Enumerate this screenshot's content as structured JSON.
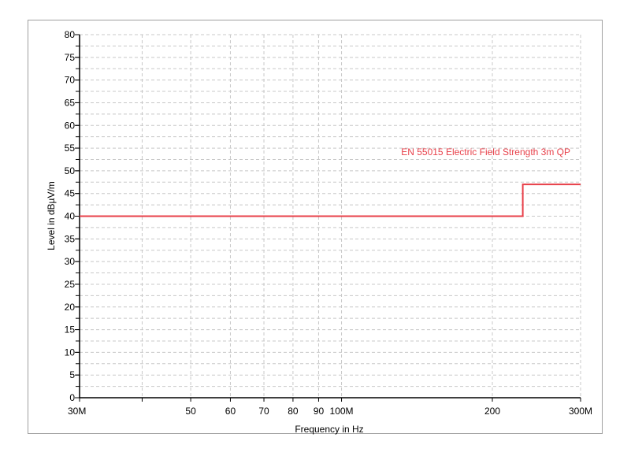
{
  "chart_data": {
    "type": "line",
    "title": "",
    "xlabel": "Frequency in Hz",
    "ylabel": "Level in dBµV/m",
    "x_scale": "log",
    "xlim": [
      30,
      300
    ],
    "ylim": [
      0,
      80
    ],
    "grid": true,
    "x_ticks": [
      {
        "value": 30,
        "label": "30M"
      },
      {
        "value": 40,
        "label": ""
      },
      {
        "value": 50,
        "label": "50"
      },
      {
        "value": 60,
        "label": "60"
      },
      {
        "value": 70,
        "label": "70"
      },
      {
        "value": 80,
        "label": "80"
      },
      {
        "value": 90,
        "label": "90"
      },
      {
        "value": 100,
        "label": "100M"
      },
      {
        "value": 200,
        "label": "200"
      },
      {
        "value": 300,
        "label": "300M"
      }
    ],
    "y_ticks": [
      0,
      5,
      10,
      15,
      20,
      25,
      30,
      35,
      40,
      45,
      50,
      55,
      60,
      65,
      70,
      75,
      80
    ],
    "series": [
      {
        "name": "EN 55015 Electric Field Strength 3m QP",
        "color": "#e8404a",
        "step": true,
        "points": [
          [
            30,
            40
          ],
          [
            230,
            40
          ],
          [
            230,
            47
          ],
          [
            300,
            47
          ]
        ]
      }
    ],
    "legend_placement": "top-right, inline label"
  }
}
